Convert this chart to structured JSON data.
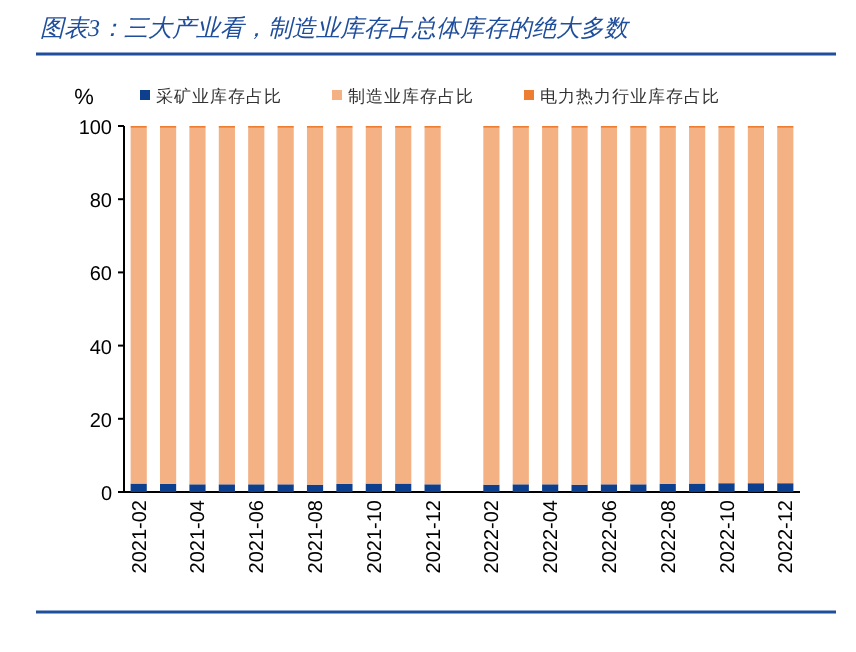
{
  "chart_data": {
    "type": "bar",
    "stacked": true,
    "title": "图表3：三大产业看，制造业库存占总体库存的绝大多数",
    "ylabel": "%",
    "categories": [
      "2021-02",
      null,
      "2021-04",
      null,
      "2021-06",
      null,
      "2021-08",
      null,
      "2021-10",
      null,
      "2021-12",
      null,
      "2022-02",
      null,
      "2022-04",
      null,
      "2022-06",
      null,
      "2022-08",
      null,
      "2022-10",
      null,
      "2022-12"
    ],
    "series": [
      {
        "name": "采矿业库存占比",
        "color": "#0d3f8f",
        "values": [
          2.3,
          2.2,
          2.1,
          2.1,
          2.1,
          2.1,
          2.0,
          2.2,
          2.3,
          2.3,
          2.1,
          null,
          2.0,
          2.1,
          2.1,
          2.0,
          2.1,
          2.1,
          2.2,
          2.3,
          2.4,
          2.4,
          2.4
        ]
      },
      {
        "name": "制造业库存占比",
        "color": "#f4b183",
        "values": [
          97.2,
          97.3,
          97.4,
          97.4,
          97.4,
          97.4,
          97.5,
          97.3,
          97.2,
          97.2,
          97.4,
          null,
          97.5,
          97.4,
          97.4,
          97.5,
          97.4,
          97.4,
          97.3,
          97.2,
          97.1,
          97.1,
          97.1
        ]
      },
      {
        "name": "电力热力行业库存占比",
        "color": "#ed7d31",
        "values": [
          0.5,
          0.5,
          0.5,
          0.5,
          0.5,
          0.5,
          0.5,
          0.5,
          0.5,
          0.5,
          0.5,
          null,
          0.5,
          0.5,
          0.5,
          0.5,
          0.5,
          0.5,
          0.5,
          0.5,
          0.5,
          0.5,
          0.5
        ]
      }
    ],
    "ylim": [
      0,
      100
    ],
    "yticks": [
      0,
      20,
      40,
      60,
      80,
      100
    ],
    "grid": false,
    "legend": "top"
  }
}
